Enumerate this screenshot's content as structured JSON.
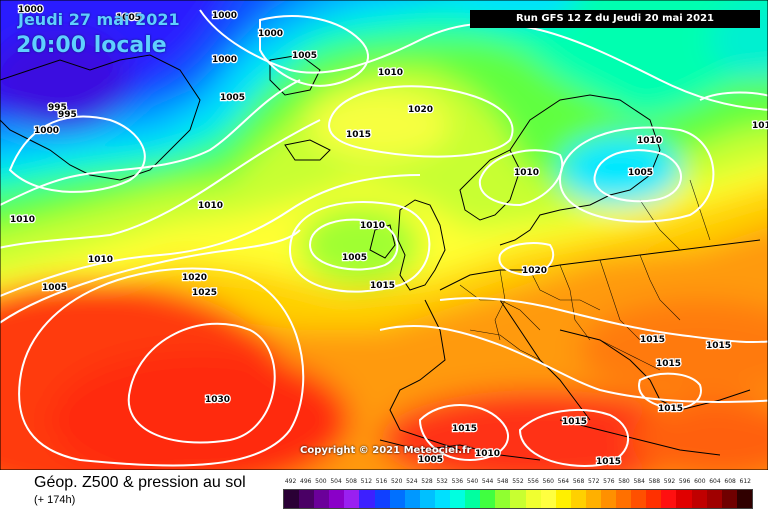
{
  "header": {
    "date": "Jeudi 27 mai 2021",
    "time": "20:00 locale",
    "run": "Run GFS 12 Z du Jeudi 20 mai 2021"
  },
  "copyright": "Copyright © 2021 Meteociel.fr",
  "legend": {
    "title": "Géop. Z500 & pression au sol",
    "lead_time": "(+ 174h)",
    "scale_values": [
      "492",
      "496",
      "500",
      "504",
      "508",
      "512",
      "516",
      "520",
      "524",
      "528",
      "532",
      "536",
      "540",
      "544",
      "548",
      "552",
      "556",
      "560",
      "564",
      "568",
      "572",
      "576",
      "580",
      "584",
      "588",
      "592",
      "596",
      "600",
      "604",
      "608",
      "612"
    ],
    "scale_colors": [
      "#2a0035",
      "#4a0065",
      "#6b009a",
      "#8a00c8",
      "#9a20f0",
      "#3d20ff",
      "#1040ff",
      "#0070ff",
      "#0098ff",
      "#00c0ff",
      "#00e0ff",
      "#00ffe0",
      "#00ffa0",
      "#40ff40",
      "#90ff30",
      "#c8ff30",
      "#f0ff30",
      "#ffff40",
      "#fff000",
      "#ffd000",
      "#ffb000",
      "#ff9000",
      "#ff7000",
      "#ff5000",
      "#ff3000",
      "#ff1010",
      "#e00000",
      "#c00000",
      "#a00000",
      "#700000",
      "#300000"
    ]
  },
  "isobar_labels": [
    "1000",
    "1000",
    "1005",
    "1000",
    "1005",
    "995",
    "995",
    "1000",
    "1010",
    "1000",
    "1005",
    "1005",
    "1010",
    "1020",
    "1015",
    "1010",
    "1010",
    "1005",
    "1015",
    "1020",
    "1025",
    "1030",
    "1010",
    "1010",
    "1005",
    "1010",
    "1020",
    "1015",
    "1015",
    "1015",
    "1015",
    "1005",
    "1015",
    "1010",
    "1015",
    "1015",
    "1010"
  ],
  "chart_data": {
    "type": "map",
    "title": "Géop. Z500 & pression au sol",
    "valid_time": "Jeudi 27 mai 2021 20:00 locale",
    "model_run": "Run GFS 12 Z du Jeudi 20 mai 2021",
    "lead_hours": "+ 174h",
    "field": "500 hPa geopotential (colour, dam) and mean sea level pressure (white isobars, hPa)",
    "colour_scale_dam": [
      492,
      496,
      500,
      504,
      508,
      512,
      516,
      520,
      524,
      528,
      532,
      536,
      540,
      544,
      548,
      552,
      556,
      560,
      564,
      568,
      572,
      576,
      580,
      584,
      588,
      592,
      596,
      600,
      604,
      608,
      612
    ],
    "pressure_centers": [
      {
        "label": "1020",
        "type": "high",
        "region": "south of Iceland"
      },
      {
        "label": "1030",
        "type": "high",
        "region": "Azores"
      },
      {
        "label": "1005",
        "type": "low",
        "region": "west of Ireland"
      },
      {
        "label": "1005",
        "type": "low",
        "region": "Gulf of Bothnia"
      },
      {
        "label": "995",
        "type": "low",
        "region": "Greenland"
      }
    ]
  }
}
